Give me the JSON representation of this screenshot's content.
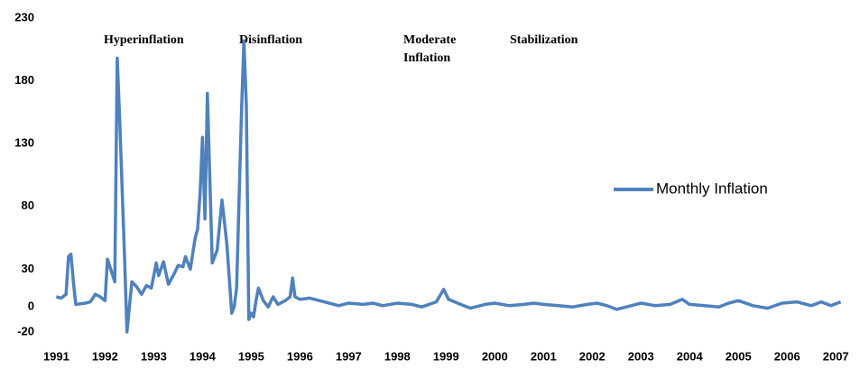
{
  "chart_data": {
    "type": "line",
    "annotations": [
      "Hyperinflation",
      "Disinflation",
      [
        "Moderate",
        "Inflation"
      ],
      "Stabilization"
    ],
    "xlim": [
      1990.9,
      2007.2
    ],
    "xticks": [
      1991,
      1992,
      1993,
      1994,
      1995,
      1996,
      1997,
      1998,
      1999,
      2000,
      2001,
      2002,
      2003,
      2004,
      2005,
      2006,
      2007
    ],
    "ylim": [
      -20,
      230
    ],
    "yticks": [
      -20,
      0,
      30,
      80,
      130,
      180,
      230
    ],
    "legend": "right",
    "series": [
      {
        "name": "Monthly Inflation",
        "color": "#4f81bd",
        "x": [
          1991.0,
          1991.1,
          1991.2,
          1991.25,
          1991.3,
          1991.35,
          1991.4,
          1991.6,
          1991.7,
          1991.8,
          1991.9,
          1992.0,
          1992.05,
          1992.1,
          1992.2,
          1992.25,
          1992.3,
          1992.4,
          1992.45,
          1992.5,
          1992.55,
          1992.65,
          1992.75,
          1992.85,
          1992.95,
          1993.05,
          1993.1,
          1993.2,
          1993.3,
          1993.4,
          1993.5,
          1993.6,
          1993.65,
          1993.75,
          1993.85,
          1993.9,
          1993.95,
          1994.0,
          1994.05,
          1994.1,
          1994.2,
          1994.3,
          1994.35,
          1994.4,
          1994.5,
          1994.6,
          1994.65,
          1994.7,
          1994.8,
          1994.85,
          1994.9,
          1994.95,
          1995.0,
          1995.05,
          1995.1,
          1995.15,
          1995.25,
          1995.35,
          1995.45,
          1995.55,
          1995.7,
          1995.8,
          1995.85,
          1995.9,
          1996.0,
          1996.2,
          1996.5,
          1996.8,
          1997.0,
          1997.3,
          1997.5,
          1997.7,
          1998.0,
          1998.3,
          1998.5,
          1998.8,
          1998.95,
          1999.05,
          1999.3,
          1999.5,
          1999.8,
          2000.0,
          2000.3,
          2000.6,
          2000.8,
          2001.0,
          2001.3,
          2001.6,
          2001.9,
          2002.1,
          2002.3,
          2002.5,
          2002.8,
          2003.0,
          2003.3,
          2003.6,
          2003.85,
          2004.0,
          2004.3,
          2004.6,
          2004.8,
          2005.0,
          2005.3,
          2005.6,
          2005.9,
          2006.2,
          2006.5,
          2006.7,
          2006.9,
          2007.1
        ],
        "values": [
          8,
          7,
          10,
          40,
          42,
          20,
          2,
          3,
          4,
          10,
          8,
          5,
          38,
          32,
          20,
          198,
          150,
          40,
          -20,
          0,
          20,
          16,
          10,
          17,
          15,
          35,
          25,
          36,
          18,
          25,
          33,
          32,
          40,
          30,
          55,
          62,
          90,
          135,
          70,
          170,
          35,
          45,
          65,
          85,
          50,
          -5,
          0,
          15,
          155,
          212,
          160,
          -10,
          -5,
          -8,
          5,
          15,
          5,
          0,
          8,
          2,
          5,
          8,
          23,
          8,
          6,
          7,
          4,
          1,
          3,
          2,
          3,
          1,
          3,
          2,
          0,
          4,
          14,
          6,
          2,
          -1,
          2,
          3,
          1,
          2,
          3,
          2,
          1,
          0,
          2,
          3,
          1,
          -2,
          1,
          3,
          1,
          2,
          6,
          2,
          1,
          0,
          3,
          5,
          1,
          -1,
          3,
          4,
          1,
          4,
          1,
          4
        ]
      }
    ]
  }
}
